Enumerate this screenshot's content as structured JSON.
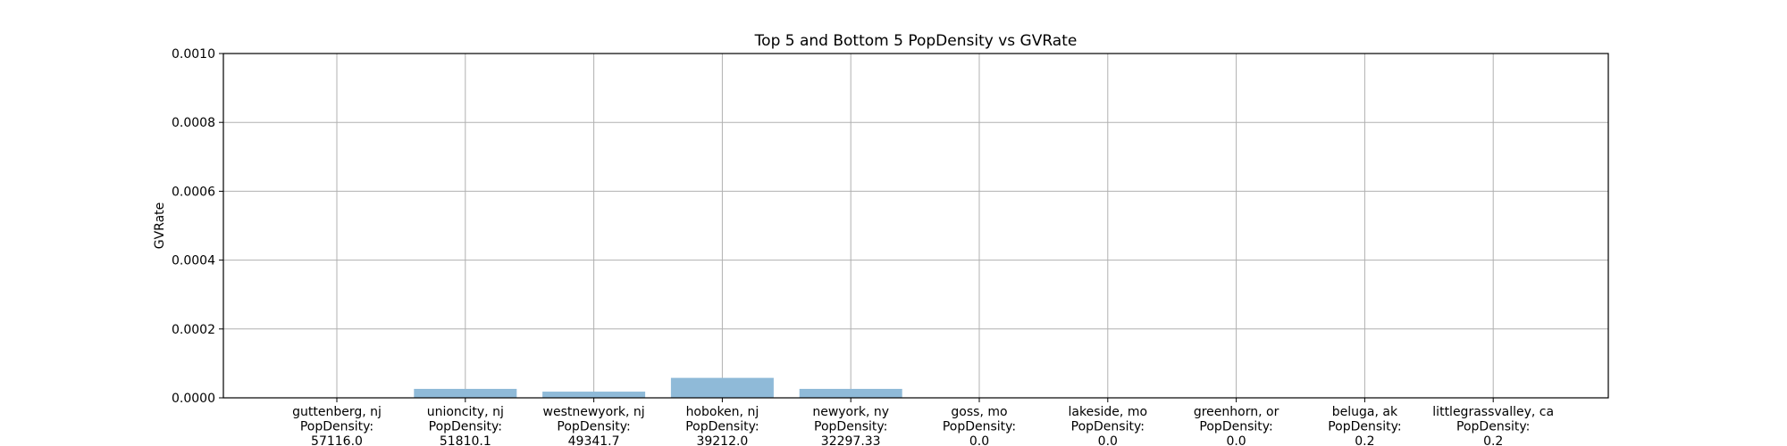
{
  "chart_data": {
    "type": "bar",
    "title": "Top 5 and Bottom 5 PopDensity vs GVRate",
    "xlabel": "",
    "ylabel": "GVRate",
    "ylim": [
      0,
      0.001
    ],
    "yticks": [
      "0.0000",
      "0.0002",
      "0.0004",
      "0.0006",
      "0.0008",
      "0.0010"
    ],
    "grid": true,
    "bar_color": "#8fbad8",
    "categories": [
      {
        "name": "guttenberg, nj",
        "label": "PopDensity:",
        "density": "57116.0"
      },
      {
        "name": "unioncity, nj",
        "label": "PopDensity:",
        "density": "51810.1"
      },
      {
        "name": "westnewyork, nj",
        "label": "PopDensity:",
        "density": "49341.7"
      },
      {
        "name": "hoboken, nj",
        "label": "PopDensity:",
        "density": "39212.0"
      },
      {
        "name": "newyork, ny",
        "label": "PopDensity:",
        "density": "32297.33"
      },
      {
        "name": "goss, mo",
        "label": "PopDensity:",
        "density": "0.0"
      },
      {
        "name": "lakeside, mo",
        "label": "PopDensity:",
        "density": "0.0"
      },
      {
        "name": "greenhorn, or",
        "label": "PopDensity:",
        "density": "0.0"
      },
      {
        "name": "beluga, ak",
        "label": "PopDensity:",
        "density": "0.2"
      },
      {
        "name": "littlegrassvalley, ca",
        "label": "PopDensity:",
        "density": "0.2"
      }
    ],
    "values": [
      0.0,
      2.6e-05,
      1.8e-05,
      5.8e-05,
      2.6e-05,
      0.0,
      0.0,
      0.0,
      0.0,
      0.0
    ]
  }
}
